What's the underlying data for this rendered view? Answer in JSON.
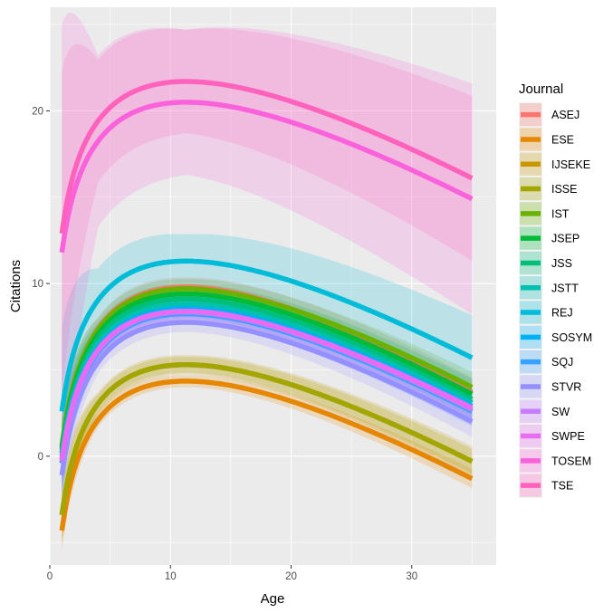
{
  "chart_data": {
    "type": "line",
    "xlabel": "Age",
    "ylabel": "Citations",
    "xlim": [
      0,
      37
    ],
    "ylim": [
      -6.3,
      26
    ],
    "x_ticks": [
      0,
      10,
      20,
      30
    ],
    "y_ticks": [
      0,
      10,
      20
    ],
    "x_range": [
      1,
      35
    ],
    "grid": true,
    "legend_title": "Journal",
    "legend_position": "right",
    "series": [
      {
        "name": "ASEJ",
        "color": "#F8766D",
        "band_color": "#F8766D",
        "peak": 9.8,
        "at_x1": 0.5,
        "at_x35": 3.7,
        "band": 0.55
      },
      {
        "name": "ESE",
        "color": "#E58700",
        "band_color": "#E58700",
        "peak": 4.35,
        "at_x1": -4.3,
        "at_x35": -1.3,
        "band": 0.35
      },
      {
        "name": "IJSEKE",
        "color": "#C99800",
        "band_color": "#C99800",
        "peak": 5.3,
        "at_x1": -3.4,
        "at_x35": -0.3,
        "band": 0.55
      },
      {
        "name": "ISSE",
        "color": "#A3A500",
        "band_color": "#A3A500",
        "peak": 5.3,
        "at_x1": -3.4,
        "at_x35": -0.3,
        "band": 0.45
      },
      {
        "name": "IST",
        "color": "#6BB100",
        "band_color": "#6BB100",
        "peak": 9.7,
        "at_x1": 0.6,
        "at_x35": 4.0,
        "band": 0.55
      },
      {
        "name": "JSEP",
        "color": "#00BA38",
        "band_color": "#00BA38",
        "peak": 9.4,
        "at_x1": 0.4,
        "at_x35": 3.6,
        "band": 0.55
      },
      {
        "name": "JSS",
        "color": "#00BF7D",
        "band_color": "#00BF7D",
        "peak": 9.1,
        "at_x1": 0.2,
        "at_x35": 3.3,
        "band": 0.55
      },
      {
        "name": "JSTT",
        "color": "#00C0AF",
        "band_color": "#00C0AF",
        "peak": 8.8,
        "at_x1": 0.0,
        "at_x35": 3.1,
        "band": 0.55
      },
      {
        "name": "REJ",
        "color": "#00BCD8",
        "band_color": "#00BCD8",
        "peak": 11.3,
        "at_x1": 2.6,
        "at_x35": 5.7,
        "band": 1.55
      },
      {
        "name": "SOSYM",
        "color": "#00B0F6",
        "band_color": "#00B0F6",
        "peak": 8.55,
        "at_x1": -0.2,
        "at_x35": 2.9,
        "band": 0.55
      },
      {
        "name": "SQJ",
        "color": "#35A2FF",
        "band_color": "#35A2FF",
        "peak": 8.25,
        "at_x1": -0.4,
        "at_x35": 2.6,
        "band": 0.55
      },
      {
        "name": "STVR",
        "color": "#9590FF",
        "band_color": "#9590FF",
        "peak": 7.75,
        "at_x1": -1.1,
        "at_x35": 2.0,
        "band": 0.55
      },
      {
        "name": "SW",
        "color": "#C77CFF",
        "band_color": "#C77CFF",
        "peak": 8.35,
        "at_x1": -0.3,
        "at_x35": 2.7,
        "band": 0.55
      },
      {
        "name": "SWPE",
        "color": "#E76BF3",
        "band_color": "#E76BF3",
        "peak": 8.4,
        "at_x1": -0.2,
        "at_x35": 2.8,
        "band": 0.55
      },
      {
        "name": "TOSEM",
        "color": "#FA62DB",
        "band_color": "#FA62DB",
        "peak": 20.5,
        "at_x1": 11.8,
        "at_x35": 14.9,
        "band": 4.2
      },
      {
        "name": "TSE",
        "color": "#FF62BC",
        "band_color": "#FF62BC",
        "peak": 21.7,
        "at_x1": 12.9,
        "at_x35": 16.1,
        "band": 3.0
      }
    ]
  }
}
